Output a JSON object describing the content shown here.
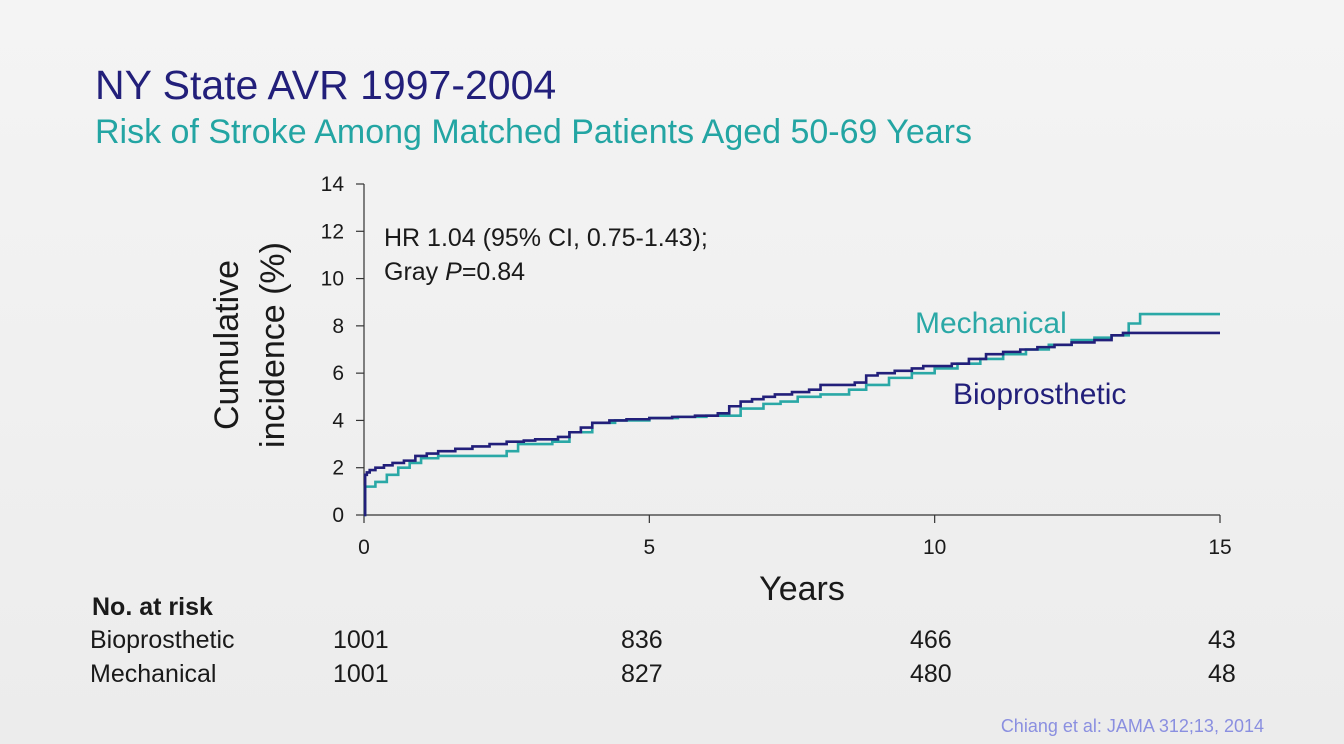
{
  "title": "NY State AVR 1997-2004",
  "subtitle": "Risk of Stroke Among Matched Patients Aged 50-69 Years",
  "colors": {
    "title": "#221f7a",
    "subtitle": "#23a5a3",
    "bioprosthetic": "#221f7a",
    "mechanical": "#2aa8a6"
  },
  "chart_data": {
    "type": "line",
    "step": true,
    "ylabel_line1": "Cumulative",
    "ylabel_line2": "incidence (%)",
    "xlabel": "Years",
    "xlim": [
      0,
      15
    ],
    "ylim": [
      0,
      14
    ],
    "xticks": [
      0,
      5,
      10,
      15
    ],
    "yticks": [
      0,
      2,
      4,
      6,
      8,
      10,
      12,
      14
    ],
    "grid": false,
    "annotation_line1": "HR 1.04 (95% CI, 0.75-1.43);",
    "annotation_line2_prefix": "Gray ",
    "annotation_line2_italic": "P",
    "annotation_line2_suffix": "=0.84",
    "series": [
      {
        "name": "Bioprosthetic",
        "x": [
          0,
          0.02,
          0.05,
          0.1,
          0.2,
          0.35,
          0.5,
          0.7,
          0.9,
          1.1,
          1.3,
          1.6,
          1.9,
          2.2,
          2.5,
          2.8,
          3.0,
          3.2,
          3.4,
          3.6,
          3.8,
          4.0,
          4.3,
          4.6,
          5.0,
          5.4,
          5.8,
          6.0,
          6.2,
          6.4,
          6.6,
          6.8,
          7.0,
          7.2,
          7.5,
          7.8,
          8.0,
          8.3,
          8.6,
          8.8,
          9.0,
          9.3,
          9.6,
          9.8,
          10.0,
          10.3,
          10.6,
          10.9,
          11.2,
          11.5,
          11.8,
          12.1,
          12.4,
          12.8,
          13.1,
          13.3,
          14.0,
          15.0
        ],
        "y": [
          0,
          1.7,
          1.8,
          1.9,
          2.0,
          2.1,
          2.2,
          2.3,
          2.5,
          2.6,
          2.7,
          2.8,
          2.9,
          3.0,
          3.1,
          3.15,
          3.2,
          3.2,
          3.3,
          3.5,
          3.7,
          3.9,
          4.0,
          4.05,
          4.1,
          4.15,
          4.2,
          4.2,
          4.3,
          4.6,
          4.8,
          4.9,
          5.0,
          5.1,
          5.2,
          5.3,
          5.5,
          5.5,
          5.6,
          5.9,
          6.0,
          6.1,
          6.2,
          6.3,
          6.3,
          6.4,
          6.6,
          6.8,
          6.9,
          7.0,
          7.1,
          7.2,
          7.3,
          7.4,
          7.6,
          7.7,
          7.7,
          7.7
        ]
      },
      {
        "name": "Mechanical",
        "x": [
          0,
          0.02,
          0.2,
          0.4,
          0.6,
          0.8,
          1.0,
          1.3,
          1.7,
          2.0,
          2.3,
          2.5,
          2.7,
          3.0,
          3.3,
          3.6,
          4.0,
          4.4,
          5.0,
          5.5,
          6.0,
          6.3,
          6.6,
          7.0,
          7.3,
          7.6,
          8.0,
          8.5,
          8.8,
          9.2,
          9.6,
          10.0,
          10.4,
          10.8,
          11.2,
          11.6,
          12.0,
          12.4,
          12.8,
          13.1,
          13.4,
          13.6,
          15.0
        ],
        "y": [
          0,
          1.2,
          1.4,
          1.7,
          2.0,
          2.2,
          2.4,
          2.5,
          2.5,
          2.5,
          2.5,
          2.7,
          3.0,
          3.0,
          3.1,
          3.5,
          3.9,
          4.0,
          4.1,
          4.15,
          4.2,
          4.2,
          4.5,
          4.7,
          4.8,
          5.0,
          5.1,
          5.3,
          5.5,
          5.8,
          6.0,
          6.2,
          6.4,
          6.6,
          6.8,
          7.0,
          7.2,
          7.4,
          7.5,
          7.6,
          8.1,
          8.5,
          8.5
        ]
      }
    ],
    "series_labels": [
      {
        "text": "Mechanical",
        "series": "Mechanical"
      },
      {
        "text": "Bioprosthetic",
        "series": "Bioprosthetic"
      }
    ]
  },
  "risk_table": {
    "header": "No. at risk",
    "rows": [
      {
        "label": "Bioprosthetic",
        "values": [
          "1001",
          "836",
          "466",
          "43"
        ]
      },
      {
        "label": "Mechanical",
        "values": [
          "1001",
          "827",
          "480",
          "48"
        ]
      }
    ]
  },
  "citation": "Chiang et al: JAMA 312;13, 2014"
}
